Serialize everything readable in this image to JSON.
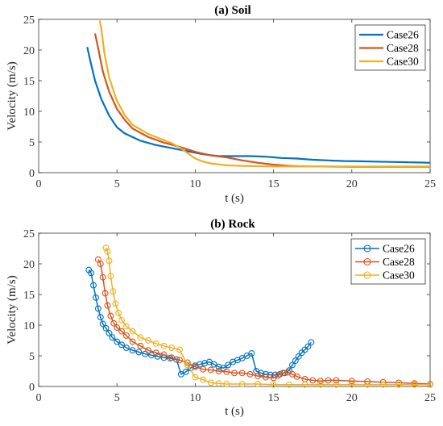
{
  "chart_data": [
    {
      "type": "line",
      "title": "(a) Soil",
      "xlabel": "t (s)",
      "ylabel": "Velocity (m/s)",
      "xlim": [
        0,
        25
      ],
      "ylim": [
        0,
        25
      ],
      "xticks": [
        0,
        5,
        10,
        15,
        20,
        25
      ],
      "yticks": [
        0,
        5,
        10,
        15,
        20,
        25
      ],
      "grid": false,
      "legend": "top-right",
      "series": [
        {
          "name": "Case26",
          "color": "#0072BD",
          "x": [
            3.1,
            3.3,
            3.6,
            4.0,
            4.5,
            5.0,
            5.5,
            6.5,
            7.5,
            8.5,
            9.5,
            10.5,
            11.5,
            12.5,
            13.5,
            14.5,
            15.5,
            16.5,
            17.5,
            18.5,
            19.5,
            20.5,
            21.5,
            22.5,
            23.5,
            24.5,
            25.0
          ],
          "y": [
            20.5,
            18.2,
            15.0,
            12.0,
            9.3,
            7.4,
            6.4,
            5.2,
            4.5,
            4.0,
            3.5,
            3.0,
            2.7,
            2.7,
            2.7,
            2.6,
            2.4,
            2.3,
            2.1,
            2.0,
            1.9,
            1.85,
            1.8,
            1.75,
            1.7,
            1.65,
            1.6
          ]
        },
        {
          "name": "Case28",
          "color": "#D95319",
          "x": [
            3.6,
            3.8,
            4.1,
            4.5,
            5.0,
            5.5,
            6.0,
            7.0,
            8.0,
            9.0,
            10.0,
            11.0,
            12.0,
            13.0,
            14.0,
            15.0,
            16.0,
            17.0,
            18.0,
            20.0,
            22.0,
            25.0
          ],
          "y": [
            22.7,
            20.3,
            16.5,
            13.2,
            10.4,
            8.6,
            7.2,
            5.8,
            4.9,
            4.2,
            3.4,
            2.8,
            2.5,
            2.0,
            1.6,
            1.3,
            1.1,
            1.0,
            1.0,
            0.95,
            0.95,
            0.95
          ]
        },
        {
          "name": "Case30",
          "color": "#EDB120",
          "x": [
            3.9,
            4.0,
            4.2,
            4.5,
            5.0,
            5.5,
            6.0,
            7.0,
            8.0,
            8.5,
            9.0,
            9.5,
            10.0,
            10.5,
            11.0,
            12.0,
            13.0,
            14.0,
            15.0,
            17.0,
            20.0,
            25.0
          ],
          "y": [
            24.8,
            23.5,
            19.5,
            15.5,
            11.7,
            9.4,
            7.8,
            6.3,
            5.3,
            4.8,
            4.1,
            3.2,
            2.3,
            1.8,
            1.5,
            1.2,
            1.1,
            1.05,
            1.0,
            1.0,
            1.0,
            1.0
          ]
        }
      ]
    },
    {
      "type": "line",
      "title": "(b) Rock",
      "xlabel": "t (s)",
      "ylabel": "Velocity (m/s)",
      "xlim": [
        0,
        25
      ],
      "ylim": [
        0,
        25
      ],
      "xticks": [
        0,
        5,
        10,
        15,
        20,
        25
      ],
      "yticks": [
        0,
        5,
        10,
        15,
        20,
        25
      ],
      "grid": false,
      "legend": "top-right",
      "markers": "circle",
      "series": [
        {
          "name": "Case26",
          "color": "#0072BD",
          "x": [
            3.2,
            3.35,
            3.5,
            3.65,
            3.8,
            3.95,
            4.1,
            4.3,
            4.5,
            4.7,
            5.0,
            5.3,
            5.6,
            6.0,
            6.4,
            6.8,
            7.2,
            7.6,
            8.0,
            8.4,
            8.8,
            9.1,
            9.4,
            9.7,
            10.0,
            10.3,
            10.6,
            10.9,
            11.2,
            11.5,
            11.8,
            12.1,
            12.4,
            12.7,
            13.0,
            13.3,
            13.6,
            13.9,
            14.2,
            14.5,
            14.8,
            15.1,
            15.4,
            15.7,
            16.0,
            16.2,
            16.4,
            16.6,
            16.8,
            17.0,
            17.2,
            17.4
          ],
          "y": [
            19.0,
            18.5,
            16.5,
            14.5,
            12.7,
            11.3,
            10.2,
            9.5,
            8.7,
            8.0,
            7.3,
            6.8,
            6.3,
            5.9,
            5.6,
            5.3,
            5.1,
            4.9,
            4.7,
            4.6,
            4.4,
            2.0,
            2.4,
            3.0,
            3.4,
            3.6,
            3.8,
            4.0,
            3.6,
            3.2,
            3.0,
            3.5,
            4.0,
            4.3,
            4.6,
            5.0,
            5.4,
            2.5,
            2.2,
            2.0,
            1.9,
            1.9,
            2.0,
            2.2,
            2.6,
            3.5,
            4.2,
            4.9,
            5.5,
            6.0,
            6.5,
            7.2
          ]
        },
        {
          "name": "Case28",
          "color": "#D95319",
          "x": [
            3.8,
            3.95,
            4.1,
            4.25,
            4.4,
            4.6,
            4.8,
            5.0,
            5.3,
            5.6,
            6.0,
            6.5,
            7.0,
            7.5,
            8.0,
            8.5,
            9.0,
            9.5,
            10.0,
            10.5,
            11.0,
            11.5,
            12.0,
            12.5,
            13.0,
            13.5,
            14.0,
            14.5,
            15.0,
            15.3,
            15.6,
            15.9,
            16.2,
            16.5,
            17.0,
            17.5,
            18.0,
            18.5,
            19.0,
            20.0,
            21.0,
            22.0,
            23.0,
            24.0,
            25.0
          ],
          "y": [
            20.7,
            20.0,
            17.8,
            15.2,
            13.2,
            11.5,
            10.3,
            9.6,
            9.0,
            8.3,
            7.3,
            6.6,
            5.9,
            5.5,
            5.2,
            4.7,
            4.3,
            3.9,
            3.2,
            2.8,
            2.7,
            2.5,
            2.4,
            2.2,
            2.2,
            2.0,
            1.7,
            1.5,
            1.4,
            1.8,
            2.2,
            2.3,
            2.0,
            1.6,
            1.2,
            1.0,
            0.9,
            1.0,
            1.0,
            0.9,
            0.8,
            0.7,
            0.6,
            0.5,
            0.4
          ]
        },
        {
          "name": "Case30",
          "color": "#EDB120",
          "x": [
            4.3,
            4.4,
            4.5,
            4.6,
            4.75,
            4.9,
            5.1,
            5.3,
            5.6,
            6.0,
            6.5,
            7.0,
            7.5,
            8.0,
            8.5,
            9.0,
            9.5,
            10.0,
            10.5,
            11.0,
            11.5,
            12.0,
            13.0,
            14.0,
            15.0,
            16.0,
            17.0,
            18.0,
            19.0,
            20.0,
            21.0,
            22.0,
            23.0,
            24.0,
            25.0
          ],
          "y": [
            22.6,
            22.0,
            20.5,
            18.0,
            15.5,
            13.5,
            12.0,
            10.8,
            9.8,
            9.0,
            8.0,
            7.5,
            7.0,
            6.6,
            6.3,
            6.0,
            3.5,
            1.5,
            1.1,
            0.6,
            0.5,
            0.4,
            0.4,
            0.4,
            0.3,
            0.3,
            0.3,
            0.3,
            0.3,
            0.3,
            0.3,
            0.3,
            0.3,
            0.3,
            0.3
          ]
        }
      ]
    }
  ]
}
